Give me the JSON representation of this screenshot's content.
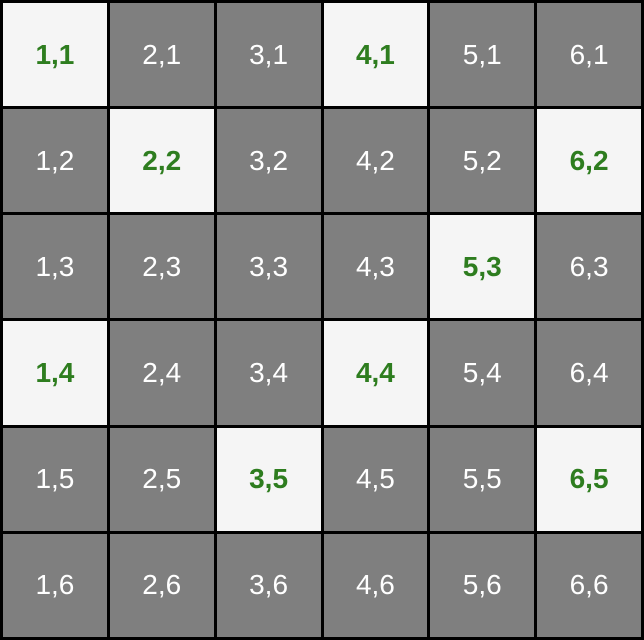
{
  "colors": {
    "grid_line": "#000000",
    "dark_cell": "#7f7f7f",
    "light_cell": "#f5f5f5",
    "dark_text": "#ffffff",
    "highlight_text": "#2e7d1f"
  },
  "board": {
    "columns": 6,
    "rows": 6,
    "cells": [
      {
        "label": "1,1",
        "highlighted": true
      },
      {
        "label": "2,1",
        "highlighted": false
      },
      {
        "label": "3,1",
        "highlighted": false
      },
      {
        "label": "4,1",
        "highlighted": true
      },
      {
        "label": "5,1",
        "highlighted": false
      },
      {
        "label": "6,1",
        "highlighted": false
      },
      {
        "label": "1,2",
        "highlighted": false
      },
      {
        "label": "2,2",
        "highlighted": true
      },
      {
        "label": "3,2",
        "highlighted": false
      },
      {
        "label": "4,2",
        "highlighted": false
      },
      {
        "label": "5,2",
        "highlighted": false
      },
      {
        "label": "6,2",
        "highlighted": true
      },
      {
        "label": "1,3",
        "highlighted": false
      },
      {
        "label": "2,3",
        "highlighted": false
      },
      {
        "label": "3,3",
        "highlighted": false
      },
      {
        "label": "4,3",
        "highlighted": false
      },
      {
        "label": "5,3",
        "highlighted": true
      },
      {
        "label": "6,3",
        "highlighted": false
      },
      {
        "label": "1,4",
        "highlighted": true
      },
      {
        "label": "2,4",
        "highlighted": false
      },
      {
        "label": "3,4",
        "highlighted": false
      },
      {
        "label": "4,4",
        "highlighted": true
      },
      {
        "label": "5,4",
        "highlighted": false
      },
      {
        "label": "6,4",
        "highlighted": false
      },
      {
        "label": "1,5",
        "highlighted": false
      },
      {
        "label": "2,5",
        "highlighted": false
      },
      {
        "label": "3,5",
        "highlighted": true
      },
      {
        "label": "4,5",
        "highlighted": false
      },
      {
        "label": "5,5",
        "highlighted": false
      },
      {
        "label": "6,5",
        "highlighted": true
      },
      {
        "label": "1,6",
        "highlighted": false
      },
      {
        "label": "2,6",
        "highlighted": false
      },
      {
        "label": "3,6",
        "highlighted": false
      },
      {
        "label": "4,6",
        "highlighted": false
      },
      {
        "label": "5,6",
        "highlighted": false
      },
      {
        "label": "6,6",
        "highlighted": false
      }
    ]
  }
}
